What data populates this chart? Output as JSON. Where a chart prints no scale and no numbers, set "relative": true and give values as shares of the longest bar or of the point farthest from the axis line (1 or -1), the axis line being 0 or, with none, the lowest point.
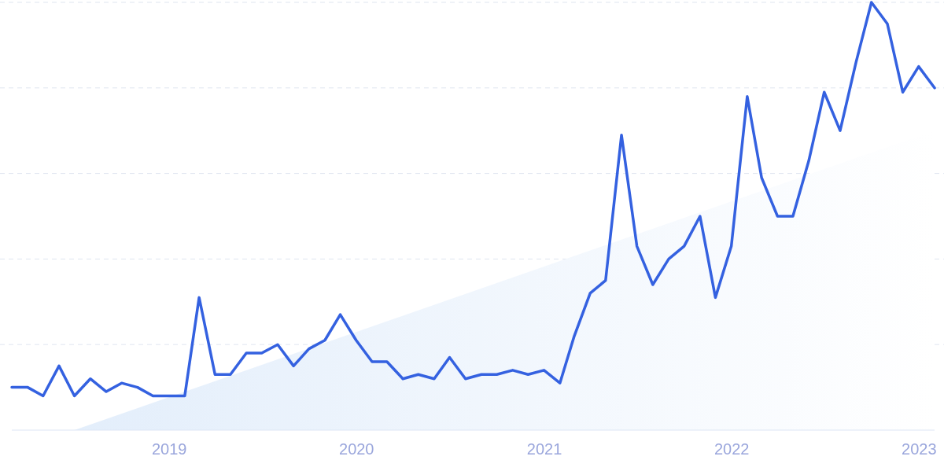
{
  "chart_data": {
    "type": "line",
    "relative": true,
    "grid": "y",
    "xlim": [
      "2018-03",
      "2023-02"
    ],
    "xticks": [
      "2019",
      "2020",
      "2021",
      "2022",
      "2023"
    ],
    "x": [
      "2018-03",
      "2018-04",
      "2018-05",
      "2018-06",
      "2018-07",
      "2018-08",
      "2018-09",
      "2018-10",
      "2018-11",
      "2018-12",
      "2019-01",
      "2019-02",
      "2019-03",
      "2019-04",
      "2019-05",
      "2019-06",
      "2019-07",
      "2019-08",
      "2019-09",
      "2019-10",
      "2019-11",
      "2019-12",
      "2020-01",
      "2020-02",
      "2020-03",
      "2020-04",
      "2020-05",
      "2020-06",
      "2020-07",
      "2020-08",
      "2020-09",
      "2020-10",
      "2020-11",
      "2020-12",
      "2021-01",
      "2021-02",
      "2021-03",
      "2021-04",
      "2021-05",
      "2021-06",
      "2021-07",
      "2021-08",
      "2021-09",
      "2021-10",
      "2021-11",
      "2021-12",
      "2022-01",
      "2022-02",
      "2022-03",
      "2022-04",
      "2022-05",
      "2022-06",
      "2022-07",
      "2022-08",
      "2022-09",
      "2022-10",
      "2022-11",
      "2022-12",
      "2023-01",
      "2023-02"
    ],
    "series": [
      {
        "type": "area",
        "color": "#e3eefb",
        "x": [
          "2018-07",
          "2023-02"
        ],
        "values": [
          0,
          0.7
        ]
      },
      {
        "color": "#3461e0",
        "values": [
          0.1,
          0.1,
          0.08,
          0.15,
          0.08,
          0.12,
          0.09,
          0.11,
          0.1,
          0.08,
          0.08,
          0.08,
          0.31,
          0.13,
          0.13,
          0.18,
          0.18,
          0.2,
          0.15,
          0.19,
          0.21,
          0.27,
          0.21,
          0.16,
          0.16,
          0.12,
          0.13,
          0.12,
          0.17,
          0.12,
          0.13,
          0.13,
          0.14,
          0.13,
          0.14,
          0.11,
          0.22,
          0.32,
          0.35,
          0.69,
          0.43,
          0.34,
          0.4,
          0.43,
          0.5,
          0.31,
          0.43,
          0.78,
          0.59,
          0.5,
          0.5,
          0.63,
          0.79,
          0.7,
          0.86,
          1,
          0.95,
          0.79,
          0.85,
          0.8
        ]
      }
    ]
  }
}
